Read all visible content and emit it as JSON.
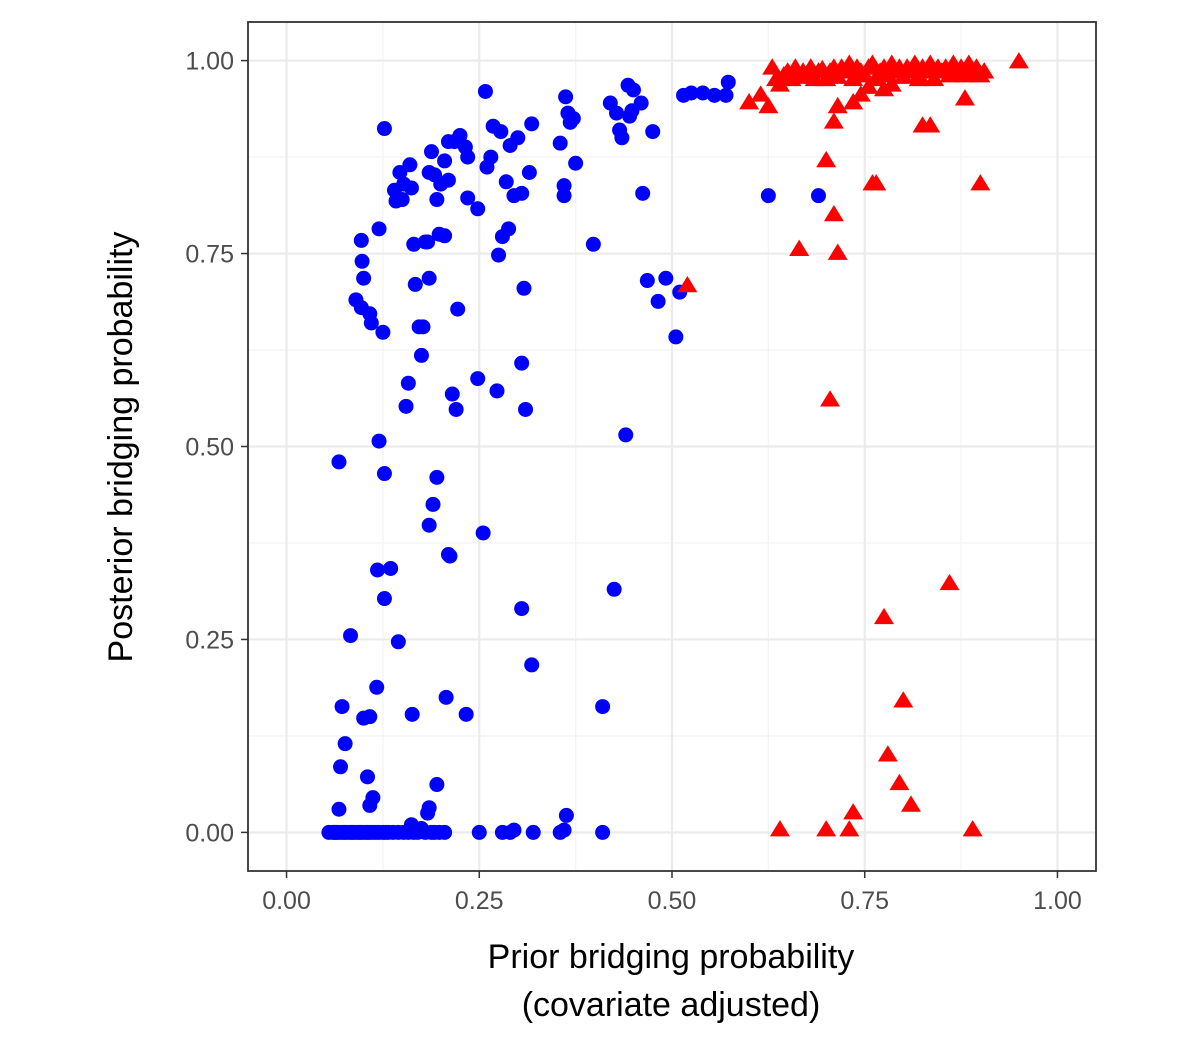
{
  "chart_data": {
    "type": "scatter",
    "xlabel_lines": [
      "Prior bridging probability",
      "(covariate adjusted)"
    ],
    "ylabel": "Posterior bridging probability",
    "xlim": [
      -0.05,
      1.05
    ],
    "ylim": [
      -0.05,
      1.05
    ],
    "x_ticks": [
      0,
      0.25,
      0.5,
      0.75,
      1.0
    ],
    "x_tick_labels": [
      "0.00",
      "0.25",
      "0.50",
      "0.75",
      "1.00"
    ],
    "y_ticks": [
      0,
      0.25,
      0.5,
      0.75,
      1.0
    ],
    "y_tick_labels": [
      "0.00",
      "0.25",
      "0.50",
      "0.75",
      "1.00"
    ],
    "grid": true,
    "series": [
      {
        "marker": "circle",
        "color": "#0000ff",
        "points": [
          [
            0.068,
            0.48
          ],
          [
            0.083,
            0.255
          ],
          [
            0.072,
            0.163
          ],
          [
            0.076,
            0.115
          ],
          [
            0.07,
            0.085
          ],
          [
            0.068,
            0.03
          ],
          [
            0.105,
            0.072
          ],
          [
            0.112,
            0.045
          ],
          [
            0.108,
            0.035
          ],
          [
            0.1,
            0.148
          ],
          [
            0.108,
            0.15
          ],
          [
            0.117,
            0.188
          ],
          [
            0.118,
            0.34
          ],
          [
            0.135,
            0.342
          ],
          [
            0.127,
            0.303
          ],
          [
            0.145,
            0.247
          ],
          [
            0.163,
            0.153
          ],
          [
            0.127,
            0.465
          ],
          [
            0.12,
            0.507
          ],
          [
            0.09,
            0.69
          ],
          [
            0.097,
            0.68
          ],
          [
            0.108,
            0.672
          ],
          [
            0.11,
            0.66
          ],
          [
            0.125,
            0.648
          ],
          [
            0.097,
            0.767
          ],
          [
            0.098,
            0.74
          ],
          [
            0.1,
            0.718
          ],
          [
            0.12,
            0.782
          ],
          [
            0.127,
            0.912
          ],
          [
            0.14,
            0.832
          ],
          [
            0.142,
            0.818
          ],
          [
            0.147,
            0.855
          ],
          [
            0.15,
            0.82
          ],
          [
            0.152,
            0.84
          ],
          [
            0.16,
            0.865
          ],
          [
            0.162,
            0.835
          ],
          [
            0.165,
            0.762
          ],
          [
            0.167,
            0.71
          ],
          [
            0.172,
            0.655
          ],
          [
            0.175,
            0.618
          ],
          [
            0.177,
            0.655
          ],
          [
            0.18,
            0.765
          ],
          [
            0.183,
            0.765
          ],
          [
            0.185,
            0.718
          ],
          [
            0.188,
            0.882
          ],
          [
            0.185,
            0.855
          ],
          [
            0.192,
            0.852
          ],
          [
            0.195,
            0.82
          ],
          [
            0.198,
            0.775
          ],
          [
            0.205,
            0.773
          ],
          [
            0.2,
            0.84
          ],
          [
            0.205,
            0.87
          ],
          [
            0.21,
            0.845
          ],
          [
            0.21,
            0.895
          ],
          [
            0.218,
            0.895
          ],
          [
            0.222,
            0.678
          ],
          [
            0.225,
            0.903
          ],
          [
            0.232,
            0.888
          ],
          [
            0.235,
            0.875
          ],
          [
            0.235,
            0.822
          ],
          [
            0.248,
            0.808
          ],
          [
            0.258,
            0.96
          ],
          [
            0.26,
            0.862
          ],
          [
            0.265,
            0.875
          ],
          [
            0.268,
            0.915
          ],
          [
            0.275,
            0.748
          ],
          [
            0.278,
            0.908
          ],
          [
            0.28,
            0.772
          ],
          [
            0.285,
            0.843
          ],
          [
            0.288,
            0.782
          ],
          [
            0.29,
            0.89
          ],
          [
            0.295,
            0.825
          ],
          [
            0.3,
            0.9
          ],
          [
            0.305,
            0.828
          ],
          [
            0.308,
            0.705
          ],
          [
            0.31,
            0.548
          ],
          [
            0.305,
            0.608
          ],
          [
            0.315,
            0.855
          ],
          [
            0.318,
            0.918
          ],
          [
            0.155,
            0.552
          ],
          [
            0.158,
            0.582
          ],
          [
            0.185,
            0.398
          ],
          [
            0.19,
            0.425
          ],
          [
            0.195,
            0.46
          ],
          [
            0.212,
            0.358
          ],
          [
            0.21,
            0.36
          ],
          [
            0.215,
            0.568
          ],
          [
            0.22,
            0.548
          ],
          [
            0.248,
            0.588
          ],
          [
            0.255,
            0.388
          ],
          [
            0.273,
            0.572
          ],
          [
            0.207,
            0.175
          ],
          [
            0.233,
            0.153
          ],
          [
            0.195,
            0.062
          ],
          [
            0.305,
            0.29
          ],
          [
            0.318,
            0.217
          ],
          [
            0.355,
            0.893
          ],
          [
            0.36,
            0.825
          ],
          [
            0.36,
            0.838
          ],
          [
            0.362,
            0.953
          ],
          [
            0.365,
            0.932
          ],
          [
            0.368,
            0.92
          ],
          [
            0.372,
            0.925
          ],
          [
            0.375,
            0.867
          ],
          [
            0.398,
            0.762
          ],
          [
            0.41,
            0.163
          ],
          [
            0.42,
            0.945
          ],
          [
            0.425,
            0.315
          ],
          [
            0.428,
            0.932
          ],
          [
            0.432,
            0.91
          ],
          [
            0.435,
            0.9
          ],
          [
            0.44,
            0.515
          ],
          [
            0.443,
            0.968
          ],
          [
            0.445,
            0.928
          ],
          [
            0.448,
            0.935
          ],
          [
            0.45,
            0.962
          ],
          [
            0.46,
            0.945
          ],
          [
            0.462,
            0.828
          ],
          [
            0.468,
            0.715
          ],
          [
            0.475,
            0.908
          ],
          [
            0.482,
            0.688
          ],
          [
            0.492,
            0.718
          ],
          [
            0.505,
            0.642
          ],
          [
            0.51,
            0.7
          ],
          [
            0.515,
            0.955
          ],
          [
            0.525,
            0.958
          ],
          [
            0.54,
            0.958
          ],
          [
            0.555,
            0.955
          ],
          [
            0.57,
            0.955
          ],
          [
            0.573,
            0.972
          ],
          [
            0.625,
            0.825
          ],
          [
            0.69,
            0.825
          ],
          [
            0.055,
            0.0
          ],
          [
            0.06,
            0.0
          ],
          [
            0.063,
            0.0
          ],
          [
            0.065,
            0.0
          ],
          [
            0.068,
            0.0
          ],
          [
            0.072,
            0.0
          ],
          [
            0.075,
            0.0
          ],
          [
            0.078,
            0.0
          ],
          [
            0.082,
            0.0
          ],
          [
            0.085,
            0.0
          ],
          [
            0.088,
            0.0
          ],
          [
            0.092,
            0.0
          ],
          [
            0.095,
            0.0
          ],
          [
            0.098,
            0.0
          ],
          [
            0.102,
            0.0
          ],
          [
            0.105,
            0.0
          ],
          [
            0.108,
            0.0
          ],
          [
            0.112,
            0.0
          ],
          [
            0.116,
            0.0
          ],
          [
            0.12,
            0.0
          ],
          [
            0.125,
            0.0
          ],
          [
            0.128,
            0.0
          ],
          [
            0.132,
            0.0
          ],
          [
            0.138,
            0.0
          ],
          [
            0.145,
            0.0
          ],
          [
            0.152,
            0.0
          ],
          [
            0.158,
            0.0
          ],
          [
            0.162,
            0.01
          ],
          [
            0.165,
            0.0
          ],
          [
            0.17,
            0.0
          ],
          [
            0.175,
            0.005
          ],
          [
            0.18,
            0.0
          ],
          [
            0.183,
            0.025
          ],
          [
            0.185,
            0.032
          ],
          [
            0.188,
            0.0
          ],
          [
            0.192,
            0.0
          ],
          [
            0.198,
            0.0
          ],
          [
            0.205,
            0.0
          ],
          [
            0.25,
            0.0
          ],
          [
            0.28,
            0.0
          ],
          [
            0.29,
            0.0
          ],
          [
            0.295,
            0.003
          ],
          [
            0.32,
            0.0
          ],
          [
            0.355,
            0.0
          ],
          [
            0.36,
            0.003
          ],
          [
            0.363,
            0.022
          ],
          [
            0.41,
            0.0
          ]
        ]
      },
      {
        "marker": "triangle",
        "color": "#ff0000",
        "points": [
          [
            0.52,
            0.708
          ],
          [
            0.6,
            0.945
          ],
          [
            0.615,
            0.955
          ],
          [
            0.625,
            0.94
          ],
          [
            0.63,
            0.99
          ],
          [
            0.635,
            0.975
          ],
          [
            0.64,
            0.968
          ],
          [
            0.645,
            0.98
          ],
          [
            0.65,
            0.985
          ],
          [
            0.655,
            0.975
          ],
          [
            0.66,
            0.99
          ],
          [
            0.665,
            0.978
          ],
          [
            0.67,
            0.985
          ],
          [
            0.675,
            0.98
          ],
          [
            0.68,
            0.99
          ],
          [
            0.685,
            0.975
          ],
          [
            0.69,
            0.985
          ],
          [
            0.695,
            0.988
          ],
          [
            0.7,
            0.975
          ],
          [
            0.705,
            0.985
          ],
          [
            0.71,
            0.99
          ],
          [
            0.715,
            0.978
          ],
          [
            0.72,
            0.99
          ],
          [
            0.725,
            0.985
          ],
          [
            0.73,
            0.995
          ],
          [
            0.735,
            0.975
          ],
          [
            0.74,
            0.99
          ],
          [
            0.745,
            0.985
          ],
          [
            0.75,
            0.98
          ],
          [
            0.755,
            0.99
          ],
          [
            0.76,
            0.995
          ],
          [
            0.765,
            0.975
          ],
          [
            0.77,
            0.985
          ],
          [
            0.775,
            0.99
          ],
          [
            0.78,
            0.98
          ],
          [
            0.785,
            0.995
          ],
          [
            0.79,
            0.985
          ],
          [
            0.795,
            0.99
          ],
          [
            0.8,
            0.978
          ],
          [
            0.805,
            0.99
          ],
          [
            0.81,
            0.985
          ],
          [
            0.815,
            0.995
          ],
          [
            0.82,
            0.98
          ],
          [
            0.825,
            0.99
          ],
          [
            0.83,
            0.985
          ],
          [
            0.835,
            0.995
          ],
          [
            0.84,
            0.975
          ],
          [
            0.845,
            0.99
          ],
          [
            0.85,
            0.985
          ],
          [
            0.855,
            0.99
          ],
          [
            0.86,
            0.98
          ],
          [
            0.865,
            0.995
          ],
          [
            0.87,
            0.985
          ],
          [
            0.875,
            0.99
          ],
          [
            0.88,
            0.98
          ],
          [
            0.885,
            0.995
          ],
          [
            0.89,
            0.985
          ],
          [
            0.895,
            0.99
          ],
          [
            0.9,
            0.98
          ],
          [
            0.905,
            0.985
          ],
          [
            0.95,
            0.998
          ],
          [
            0.715,
            0.94
          ],
          [
            0.71,
            0.92
          ],
          [
            0.735,
            0.945
          ],
          [
            0.745,
            0.955
          ],
          [
            0.755,
            0.965
          ],
          [
            0.775,
            0.962
          ],
          [
            0.785,
            0.968
          ],
          [
            0.82,
            0.975
          ],
          [
            0.825,
            0.915
          ],
          [
            0.835,
            0.915
          ],
          [
            0.88,
            0.95
          ],
          [
            0.7,
            0.87
          ],
          [
            0.71,
            0.8
          ],
          [
            0.715,
            0.75
          ],
          [
            0.665,
            0.755
          ],
          [
            0.76,
            0.84
          ],
          [
            0.765,
            0.84
          ],
          [
            0.9,
            0.84
          ],
          [
            0.705,
            0.56
          ],
          [
            0.775,
            0.278
          ],
          [
            0.86,
            0.322
          ],
          [
            0.8,
            0.17
          ],
          [
            0.78,
            0.1
          ],
          [
            0.795,
            0.063
          ],
          [
            0.81,
            0.035
          ],
          [
            0.735,
            0.025
          ],
          [
            0.64,
            0.003
          ],
          [
            0.7,
            0.003
          ],
          [
            0.73,
            0.003
          ],
          [
            0.89,
            0.003
          ]
        ]
      }
    ]
  }
}
